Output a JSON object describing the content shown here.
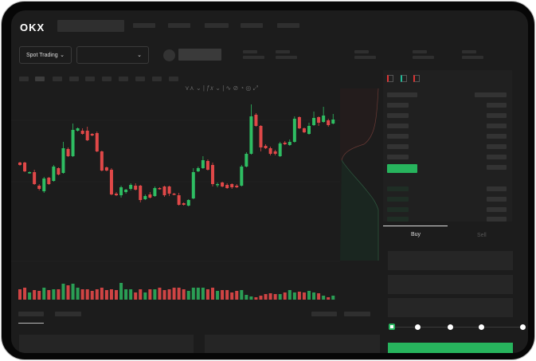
{
  "header": {
    "logo": "OKX"
  },
  "toolbar": {
    "market_selector": "Spot Trading",
    "pair_selector": "",
    "chevron": "⌄"
  },
  "colors": {
    "up": "#2ebd62",
    "down": "#e04848",
    "accent": "#27b45d",
    "background": "#1c1c1c"
  },
  "order_form": {
    "buy_tab": "Buy",
    "sell_tab": "Sell",
    "active_tab": "Buy",
    "slider_percent": 0
  },
  "chart_data": {
    "type": "candlestick",
    "candles": [
      [
        97,
        94,
        98,
        93
      ],
      [
        97,
        86,
        98,
        85
      ],
      [
        84,
        85,
        86,
        83
      ],
      [
        85,
        70,
        88,
        69
      ],
      [
        68,
        64,
        70,
        62
      ],
      [
        61,
        77,
        79,
        59
      ],
      [
        78,
        70,
        79,
        69
      ],
      [
        74,
        92,
        94,
        73
      ],
      [
        90,
        82,
        91,
        81
      ],
      [
        84,
        115,
        123,
        83
      ],
      [
        114,
        105,
        116,
        104
      ],
      [
        105,
        138,
        146,
        104
      ],
      [
        137,
        140,
        141,
        136
      ],
      [
        137,
        133,
        140,
        132
      ],
      [
        137,
        125,
        142,
        124
      ],
      [
        133,
        131,
        134,
        130
      ],
      [
        134,
        111,
        136,
        110
      ],
      [
        111,
        87,
        112,
        86
      ],
      [
        91,
        87,
        92,
        86
      ],
      [
        88,
        57,
        90,
        56
      ],
      [
        58,
        56,
        60,
        55
      ],
      [
        56,
        66,
        68,
        53
      ],
      [
        60,
        63,
        64,
        58
      ],
      [
        64,
        69,
        71,
        62
      ],
      [
        68,
        63,
        71,
        62
      ],
      [
        68,
        50,
        69,
        47
      ],
      [
        51,
        55,
        57,
        50
      ],
      [
        57,
        53,
        60,
        52
      ],
      [
        55,
        65,
        67,
        54
      ],
      [
        65,
        64,
        66,
        63
      ],
      [
        67,
        56,
        68,
        54
      ],
      [
        67,
        58,
        68,
        55
      ],
      [
        58,
        57,
        59,
        56
      ],
      [
        56,
        44,
        59,
        43
      ],
      [
        46,
        44,
        47,
        43
      ],
      [
        43,
        50,
        51,
        42
      ],
      [
        52,
        85,
        90,
        51
      ],
      [
        86,
        90,
        92,
        85
      ],
      [
        90,
        100,
        105,
        89
      ],
      [
        99,
        88,
        101,
        87
      ],
      [
        94,
        70,
        97,
        67
      ],
      [
        69,
        70,
        72,
        66
      ],
      [
        72,
        67,
        73,
        66
      ],
      [
        69,
        65,
        71,
        64
      ],
      [
        70,
        66,
        71,
        64
      ],
      [
        68,
        66,
        70,
        65
      ],
      [
        68,
        92,
        94,
        67
      ],
      [
        92,
        108,
        110,
        91
      ],
      [
        108,
        155,
        170,
        107
      ],
      [
        157,
        143,
        159,
        142
      ],
      [
        143,
        116,
        144,
        111
      ],
      [
        118,
        115,
        120,
        114
      ],
      [
        115,
        108,
        117,
        106
      ],
      [
        111,
        108,
        113,
        106
      ],
      [
        105,
        121,
        123,
        104
      ],
      [
        122,
        120,
        124,
        119
      ],
      [
        119,
        123,
        126,
        118
      ],
      [
        123,
        152,
        155,
        122
      ],
      [
        154,
        140,
        155,
        139
      ],
      [
        140,
        135,
        141,
        134
      ],
      [
        133,
        143,
        147,
        132
      ],
      [
        144,
        153,
        161,
        143
      ],
      [
        154,
        147,
        155,
        143
      ],
      [
        148,
        156,
        167,
        147
      ],
      [
        150,
        144,
        152,
        142
      ],
      [
        146,
        151,
        158,
        145
      ]
    ],
    "volume": [
      13,
      15,
      9,
      12,
      11,
      15,
      12,
      13,
      13,
      20,
      18,
      20,
      15,
      13,
      13,
      11,
      13,
      15,
      12,
      13,
      12,
      21,
      13,
      13,
      9,
      13,
      9,
      13,
      13,
      15,
      12,
      13,
      15,
      15,
      13,
      11,
      15,
      15,
      15,
      13,
      15,
      11,
      12,
      12,
      9,
      11,
      12,
      6,
      4,
      3,
      5,
      7,
      8,
      7,
      7,
      9,
      12,
      9,
      10,
      9,
      11,
      9,
      8,
      5,
      3,
      5
    ],
    "grid": true,
    "has_volume_panel": true,
    "has_depth_chart": true
  }
}
